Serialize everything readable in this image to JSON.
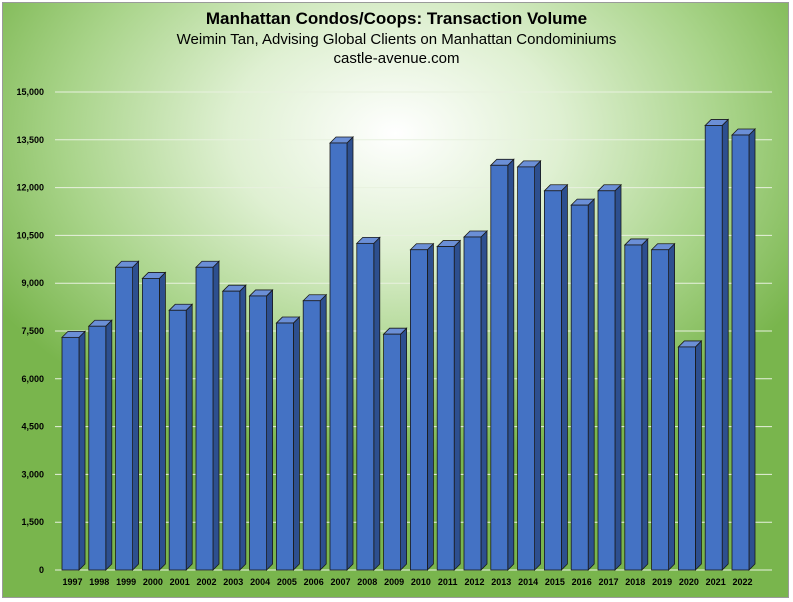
{
  "chart_data": {
    "type": "bar",
    "title": "Manhattan Condos/Coops: Transaction Volume",
    "subtitle": "Weimin Tan, Advising Global Clients on Manhattan Condominiums",
    "site": "castle-avenue.com",
    "xlabel": "",
    "ylabel": "",
    "ylim": [
      0,
      15000
    ],
    "yticks": [
      0,
      1500,
      3000,
      4500,
      6000,
      7500,
      9000,
      10500,
      12000,
      13500,
      15000
    ],
    "ytick_labels": [
      "0",
      "1,500",
      "3,000",
      "4,500",
      "6,000",
      "7,500",
      "9,000",
      "10,500",
      "12,000",
      "13,500",
      "15,000"
    ],
    "categories": [
      "1997",
      "1998",
      "1999",
      "2000",
      "2001",
      "2002",
      "2003",
      "2004",
      "2005",
      "2006",
      "2007",
      "2008",
      "2009",
      "2010",
      "2011",
      "2012",
      "2013",
      "2014",
      "2015",
      "2016",
      "2017",
      "2018",
      "2019",
      "2020",
      "2021",
      "2022"
    ],
    "values": [
      7300,
      7650,
      9500,
      9150,
      8150,
      9500,
      8750,
      8600,
      7750,
      8450,
      13400,
      10250,
      7400,
      10050,
      10150,
      10450,
      12700,
      12650,
      11900,
      11450,
      11900,
      10200,
      10050,
      7000,
      13950,
      13650
    ],
    "grid": true,
    "legend": "none",
    "colors": {
      "bar_front": "#4472c4",
      "bar_side": "#2d4f8f",
      "bar_top": "#6b8fd6",
      "bar_outline": "#1a1a1a",
      "grid": "#e8f1df"
    }
  }
}
